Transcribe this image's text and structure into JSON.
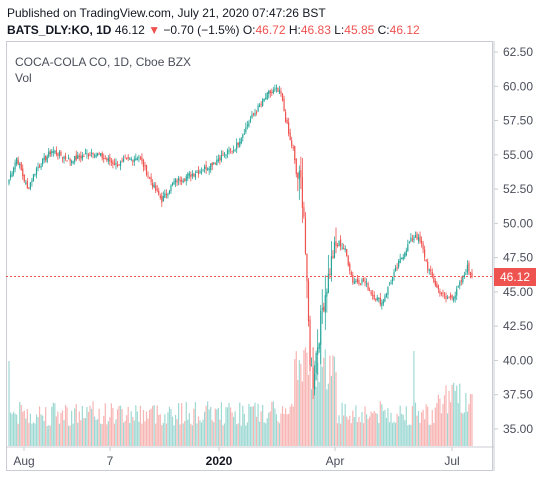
{
  "header": {
    "published": "Published on TradingView.com, July 21, 2020 07:47:26 BST",
    "symbol": "BATS_DLY:KO, 1D",
    "last": "46.12",
    "change_arrow": "▼",
    "change": "−0.70 (−1.5%)",
    "o_label": "O:",
    "o_value": "46.72",
    "h_label": "H:",
    "h_value": "46.83",
    "l_label": "L:",
    "l_value": "45.85",
    "c_label": "C:",
    "c_value": "46.12"
  },
  "legend": {
    "title": "COCA-COLA CO, 1D, Cboe BZX",
    "vol": "Vol"
  },
  "colors": {
    "up": "#26a69a",
    "down": "#ef5350",
    "up_volume": "#9fd9d3",
    "down_volume": "#f7b5b3",
    "last_line": "#ef5350",
    "axis_text": "#4a4e5a"
  },
  "chart_data": {
    "type": "candlestick",
    "title": "COCA-COLA CO, 1D, Cboe BZX",
    "y_axis": {
      "ticks": [
        "62.50",
        "60.00",
        "57.50",
        "55.00",
        "52.50",
        "50.00",
        "47.50",
        "45.00",
        "42.50",
        "40.00",
        "37.50",
        "35.00"
      ],
      "ylim": [
        34.3,
        62.9
      ],
      "position": "right"
    },
    "x_axis": {
      "ticks": [
        {
          "label": "Aug",
          "bold": false
        },
        {
          "label": "7",
          "bold": false
        },
        {
          "label": "2020",
          "bold": true
        },
        {
          "label": "Apr",
          "bold": false
        },
        {
          "label": "Jul",
          "bold": false
        }
      ]
    },
    "last_price": 46.12,
    "last_price_label": "46.12",
    "anchors": [
      {
        "t": 0,
        "p": 53.2
      },
      {
        "t": 5,
        "p": 54.8
      },
      {
        "t": 12,
        "p": 52.5
      },
      {
        "t": 18,
        "p": 54.0
      },
      {
        "t": 28,
        "p": 55.3
      },
      {
        "t": 40,
        "p": 54.6
      },
      {
        "t": 55,
        "p": 55.2
      },
      {
        "t": 70,
        "p": 54.3
      },
      {
        "t": 85,
        "p": 54.9
      },
      {
        "t": 95,
        "p": 52.6
      },
      {
        "t": 100,
        "p": 51.7
      },
      {
        "t": 108,
        "p": 53.0
      },
      {
        "t": 118,
        "p": 53.5
      },
      {
        "t": 128,
        "p": 54.0
      },
      {
        "t": 138,
        "p": 54.8
      },
      {
        "t": 148,
        "p": 55.5
      },
      {
        "t": 158,
        "p": 57.6
      },
      {
        "t": 165,
        "p": 58.7
      },
      {
        "t": 170,
        "p": 59.5
      },
      {
        "t": 175,
        "p": 59.7
      },
      {
        "t": 178,
        "p": 59.4
      },
      {
        "t": 181,
        "p": 57.6
      },
      {
        "t": 184,
        "p": 56.0
      },
      {
        "t": 186,
        "p": 55.4
      },
      {
        "t": 188,
        "p": 53.6
      },
      {
        "t": 191,
        "p": 53.0
      },
      {
        "t": 193,
        "p": 50.7
      },
      {
        "t": 195,
        "p": 45.0
      },
      {
        "t": 197,
        "p": 40.2
      },
      {
        "t": 199,
        "p": 38.5
      },
      {
        "t": 201,
        "p": 40.5
      },
      {
        "t": 203,
        "p": 42.0
      },
      {
        "t": 205,
        "p": 43.8
      },
      {
        "t": 208,
        "p": 45.5
      },
      {
        "t": 212,
        "p": 47.8
      },
      {
        "t": 216,
        "p": 48.6
      },
      {
        "t": 220,
        "p": 48.0
      },
      {
        "t": 225,
        "p": 45.8
      },
      {
        "t": 232,
        "p": 45.8
      },
      {
        "t": 238,
        "p": 44.8
      },
      {
        "t": 244,
        "p": 44.2
      },
      {
        "t": 250,
        "p": 45.8
      },
      {
        "t": 256,
        "p": 47.3
      },
      {
        "t": 262,
        "p": 48.6
      },
      {
        "t": 266,
        "p": 49.2
      },
      {
        "t": 270,
        "p": 48.4
      },
      {
        "t": 274,
        "p": 46.8
      },
      {
        "t": 280,
        "p": 45.3
      },
      {
        "t": 286,
        "p": 44.5
      },
      {
        "t": 292,
        "p": 44.8
      },
      {
        "t": 297,
        "p": 46.0
      },
      {
        "t": 300,
        "p": 46.8
      },
      {
        "t": 303,
        "p": 46.12
      }
    ],
    "volume_axis": {
      "max": 42.0
    }
  }
}
